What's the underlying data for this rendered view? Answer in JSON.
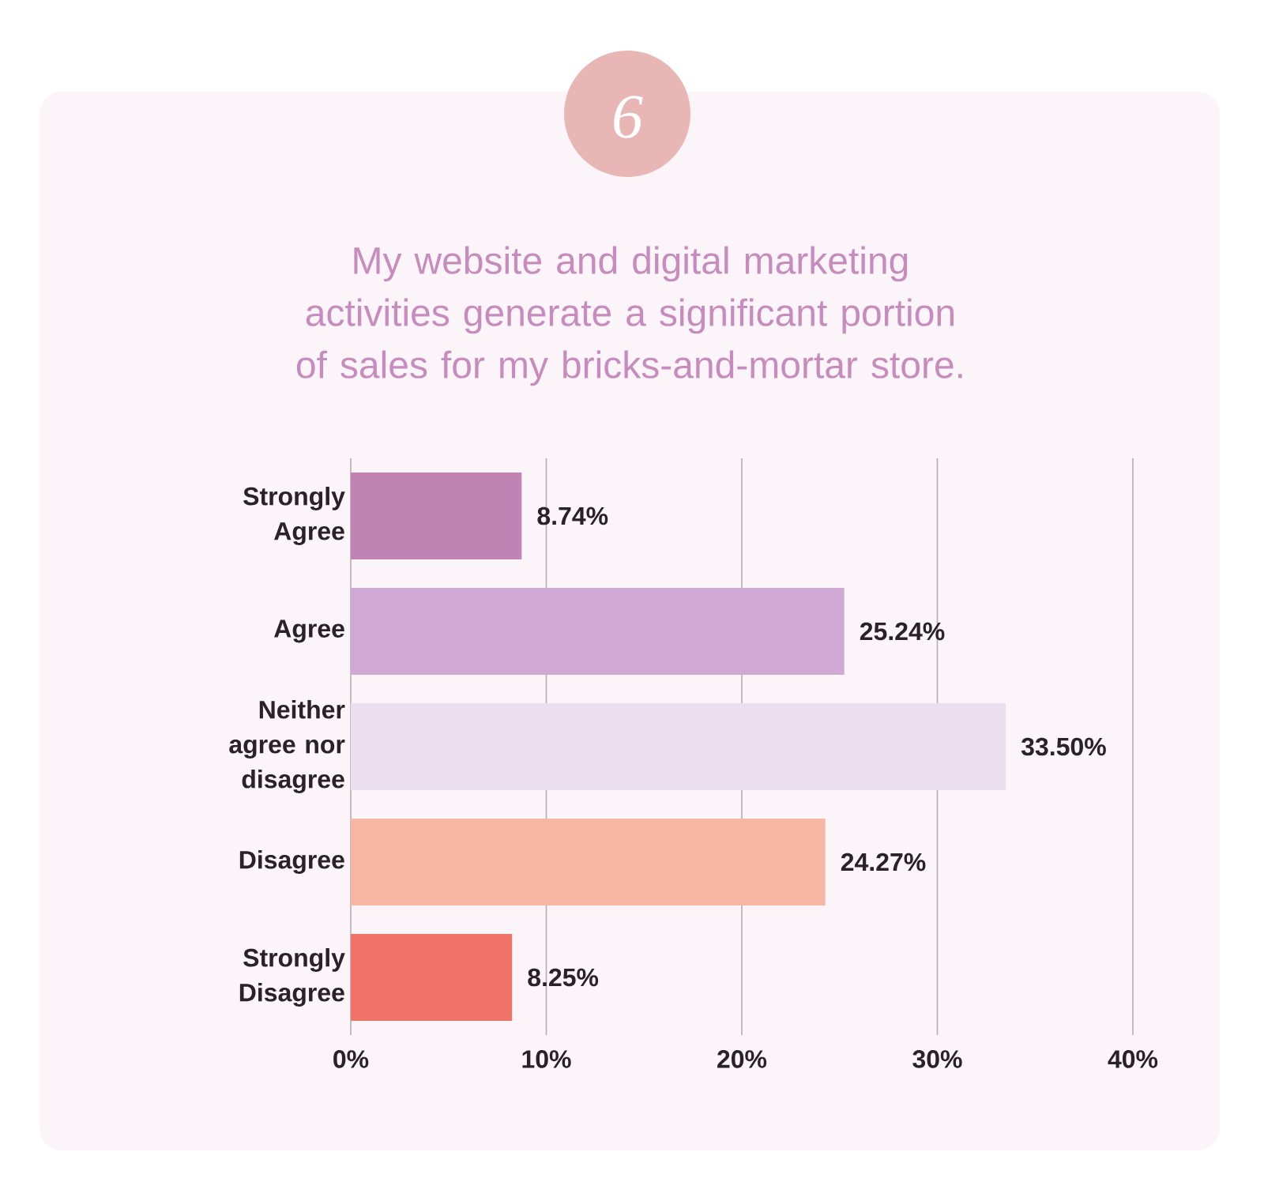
{
  "chart_data": {
    "type": "bar",
    "orientation": "horizontal",
    "title": "My website and digital marketing activities generate a significant portion of sales for my bricks-and-mortar store.",
    "categories": [
      "Strongly Agree",
      "Agree",
      "Neither agree nor disagree",
      "Disagree",
      "Strongly Disagree"
    ],
    "values": [
      8.74,
      25.24,
      33.5,
      24.27,
      8.25
    ],
    "value_labels": [
      "8.74%",
      "25.24%",
      "33.50%",
      "24.27%",
      "8.25%"
    ],
    "colors": [
      "#c183b3",
      "#cfa9d4",
      "#ebdeee",
      "#f8b7a5",
      "#f0736a"
    ],
    "xlim": [
      0,
      40
    ],
    "xticks": [
      {
        "value": 0,
        "label": "0%"
      },
      {
        "value": 10,
        "label": "10%"
      },
      {
        "value": 20,
        "label": "20%"
      },
      {
        "value": 30,
        "label": "30%"
      },
      {
        "value": 40,
        "label": "40%"
      }
    ],
    "grid": "x",
    "annotations": [
      "6"
    ]
  }
}
